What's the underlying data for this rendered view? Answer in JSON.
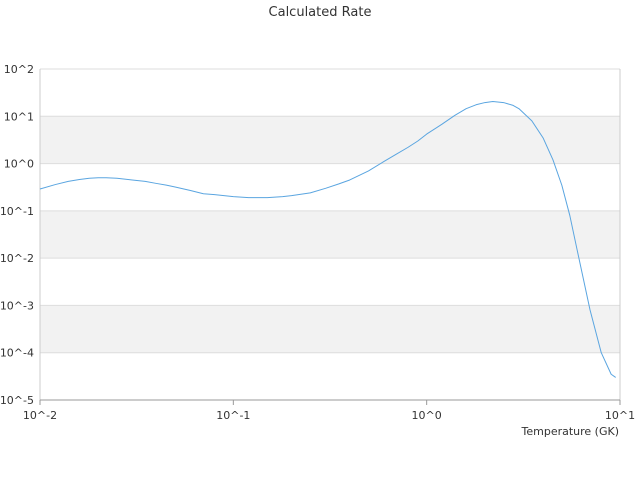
{
  "chart_data": {
    "type": "line",
    "title": "Calculated Rate",
    "xlabel": "Temperature (GK)",
    "ylabel": "",
    "x_scale": "log",
    "y_scale": "log",
    "xlim": [
      0.01,
      10
    ],
    "ylim": [
      1e-05,
      100
    ],
    "x_ticks": [
      {
        "value": 0.01,
        "label": "10^-2"
      },
      {
        "value": 0.1,
        "label": "10^-1"
      },
      {
        "value": 1,
        "label": "10^0"
      },
      {
        "value": 10,
        "label": "10^1"
      }
    ],
    "y_ticks": [
      {
        "value": 100,
        "label": "10^2"
      },
      {
        "value": 10,
        "label": "10^1"
      },
      {
        "value": 1,
        "label": "10^0"
      },
      {
        "value": 0.1,
        "label": "10^-1"
      },
      {
        "value": 0.01,
        "label": "10^-2"
      },
      {
        "value": 0.001,
        "label": "10^-3"
      },
      {
        "value": 0.0001,
        "label": "10^-4"
      },
      {
        "value": 1e-05,
        "label": "10^-5"
      }
    ],
    "grid": true,
    "alternating_bands": true,
    "legend": "none",
    "colors": {
      "line": "#5aa5e0",
      "band": "#f2f2f2",
      "grid": "#dddddd",
      "axis": "#cccccc"
    },
    "series": [
      {
        "color": "#5aa5e0",
        "x": [
          0.01,
          0.012,
          0.014,
          0.016,
          0.018,
          0.02,
          0.022,
          0.025,
          0.03,
          0.035,
          0.04,
          0.045,
          0.05,
          0.06,
          0.07,
          0.08,
          0.1,
          0.12,
          0.15,
          0.18,
          0.2,
          0.25,
          0.3,
          0.35,
          0.4,
          0.5,
          0.6,
          0.7,
          0.8,
          0.9,
          1.0,
          1.2,
          1.4,
          1.6,
          1.8,
          2.0,
          2.2,
          2.5,
          2.8,
          3.0,
          3.5,
          4.0,
          4.5,
          5.0,
          5.5,
          6.0,
          7.0,
          8.0,
          9.0,
          9.5
        ],
        "y": [
          0.29,
          0.36,
          0.42,
          0.46,
          0.49,
          0.5,
          0.5,
          0.49,
          0.45,
          0.42,
          0.38,
          0.35,
          0.32,
          0.27,
          0.23,
          0.22,
          0.2,
          0.19,
          0.19,
          0.2,
          0.21,
          0.24,
          0.3,
          0.37,
          0.45,
          0.7,
          1.1,
          1.6,
          2.2,
          3.0,
          4.2,
          6.8,
          10.5,
          14.5,
          17.5,
          19.5,
          20.5,
          19.5,
          17.0,
          14.5,
          8.0,
          3.5,
          1.2,
          0.35,
          0.08,
          0.015,
          0.0008,
          0.0001,
          3.5e-05,
          3e-05
        ]
      }
    ]
  }
}
